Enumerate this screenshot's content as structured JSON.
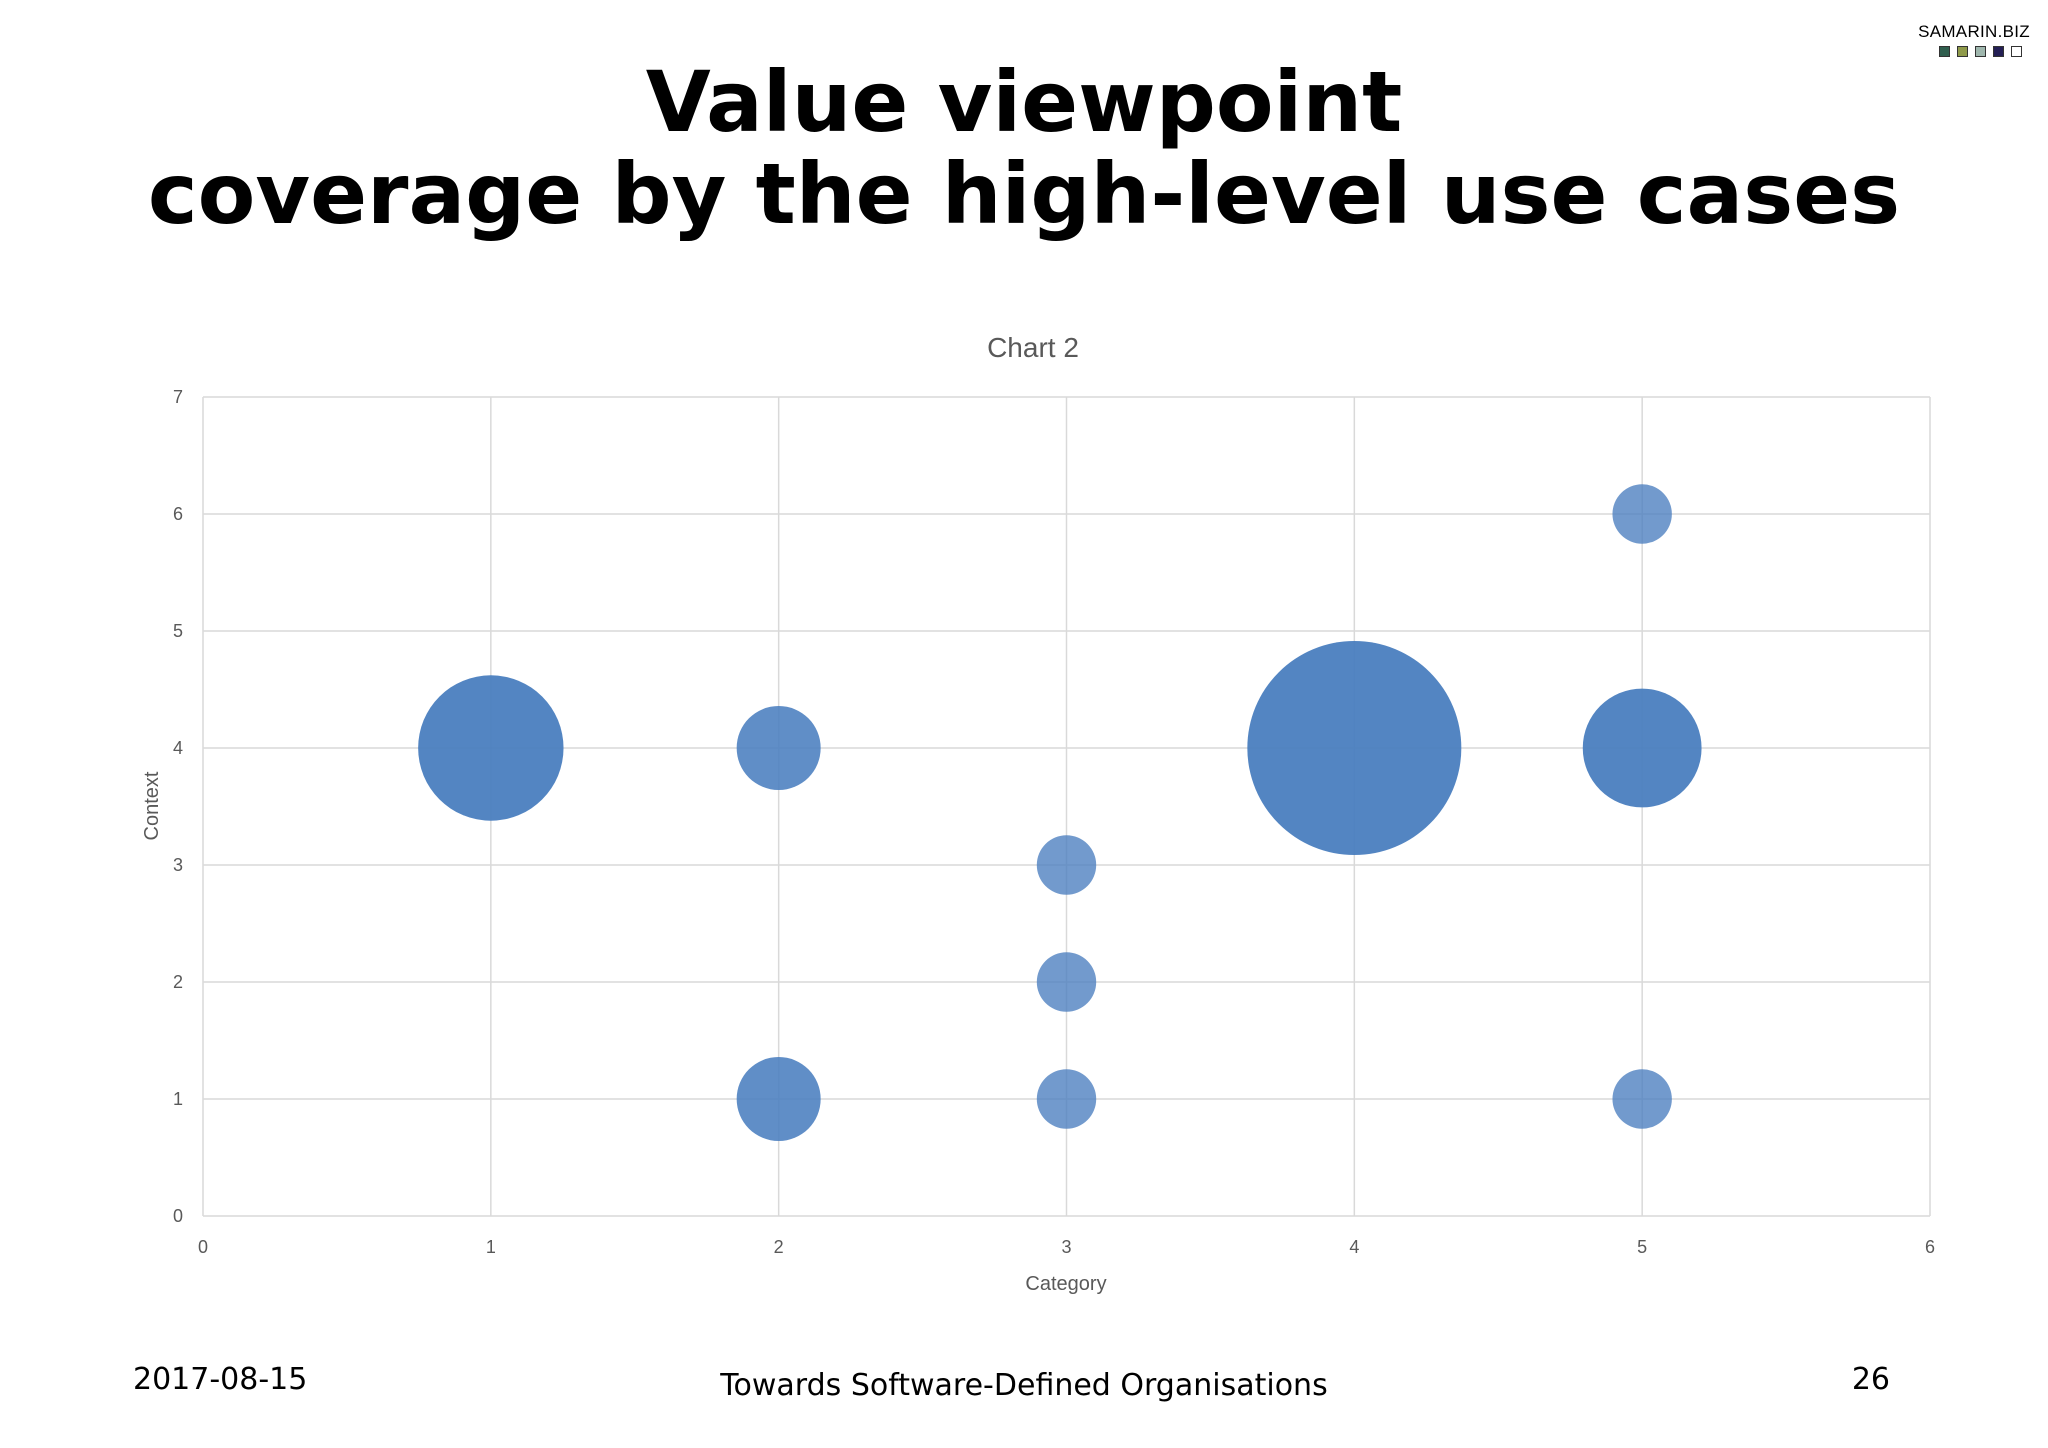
{
  "brand": {
    "name": "SAMARIN.BIZ",
    "square_colors": [
      "#2f5e4e",
      "#8f9a4a",
      "#9fb7ae",
      "#241f55",
      "#ffffff"
    ]
  },
  "slide": {
    "title_line1": "Value viewpoint",
    "title_line2": "coverage by the high-level use cases"
  },
  "footer": {
    "date": "2017-08-15",
    "title": "Towards Software-Defined Organisations",
    "page": "26"
  },
  "chart_data": {
    "type": "scatter",
    "subtype": "bubble",
    "title": "Chart 2",
    "xlabel": "Category",
    "ylabel": "Context",
    "xlim": [
      0,
      6
    ],
    "ylim": [
      0,
      7
    ],
    "xticks": [
      0,
      1,
      2,
      3,
      4,
      5,
      6
    ],
    "yticks": [
      0,
      1,
      2,
      3,
      4,
      5,
      6,
      7
    ],
    "grid": true,
    "legend": "none",
    "series": [
      {
        "color": "#4a7ebf",
        "points": [
          {
            "x": 1,
            "y": 4,
            "size": 12
          },
          {
            "x": 2,
            "y": 4,
            "size": 4
          },
          {
            "x": 2,
            "y": 1,
            "size": 4
          },
          {
            "x": 3,
            "y": 3,
            "size": 2
          },
          {
            "x": 3,
            "y": 2,
            "size": 2
          },
          {
            "x": 3,
            "y": 1,
            "size": 2
          },
          {
            "x": 4,
            "y": 4,
            "size": 26
          },
          {
            "x": 5,
            "y": 6,
            "size": 2
          },
          {
            "x": 5,
            "y": 4,
            "size": 8
          },
          {
            "x": 5,
            "y": 1,
            "size": 2
          }
        ]
      }
    ]
  }
}
